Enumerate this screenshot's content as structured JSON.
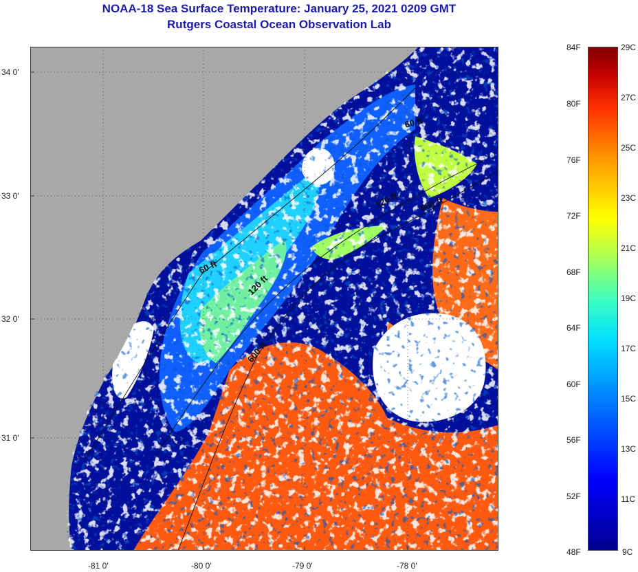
{
  "title": {
    "line1": "NOAA-18 Sea Surface Temperature:  January 25, 2021 0209 GMT",
    "line2": "Rutgers Coastal Ocean Observation Lab"
  },
  "map": {
    "lat_labels": [
      "34 0'",
      "33 0'",
      "32 0'",
      "31 0'"
    ],
    "lon_labels": [
      "-81 0'",
      "-80 0'",
      "-79 0'",
      "-78 0'"
    ],
    "isobaths": [
      {
        "label": "60 ft"
      },
      {
        "label": "60 ft"
      },
      {
        "label": "120 ft"
      },
      {
        "label": "120 ft"
      },
      {
        "label": "600 ft"
      },
      {
        "label": "600 ft"
      }
    ],
    "colors": {
      "land": "#a8a8a8",
      "cloud": "#ffffff",
      "cold": "#00109a",
      "warm": "#ff5a10"
    }
  },
  "colorbar": {
    "fahrenheit": [
      "84F",
      "80F",
      "76F",
      "72F",
      "68F",
      "64F",
      "60F",
      "56F",
      "52F",
      "48F"
    ],
    "celsius": [
      "29C",
      "27C",
      "25C",
      "23C",
      "21C",
      "19C",
      "17C",
      "15C",
      "13C",
      "11C",
      "9C"
    ]
  }
}
